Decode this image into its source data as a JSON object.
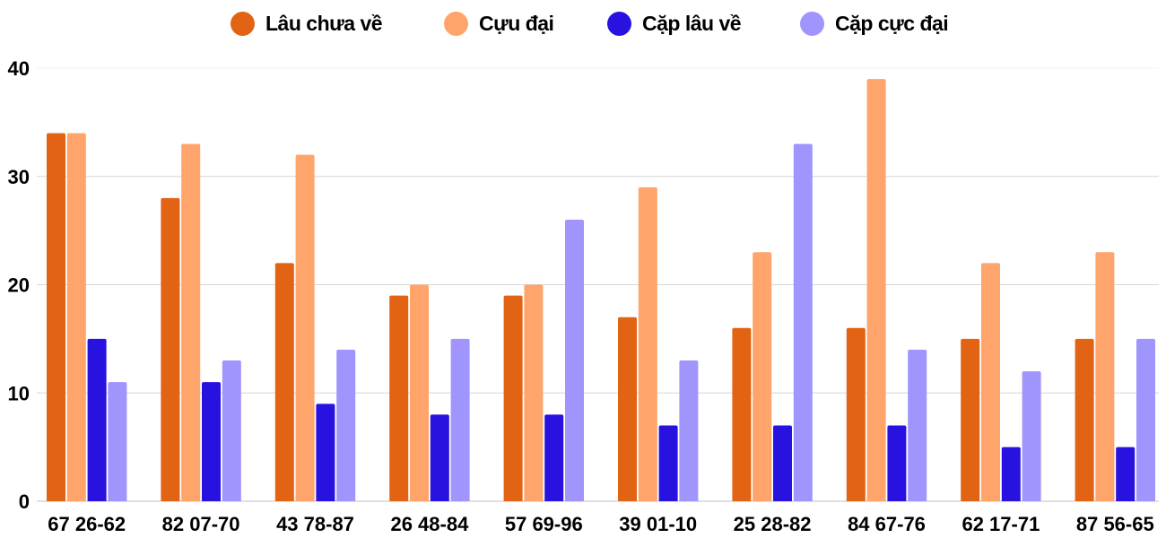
{
  "chart_data": {
    "type": "bar",
    "categories": [
      "67 26-62",
      "82 07-70",
      "43 78-87",
      "26 48-84",
      "57 69-96",
      "39 01-10",
      "25 28-82",
      "84 67-76",
      "62 17-71",
      "87 56-65"
    ],
    "series": [
      {
        "name": "Lâu chưa về",
        "color": "#e26314",
        "values": [
          34,
          28,
          22,
          19,
          19,
          17,
          16,
          16,
          15,
          15
        ]
      },
      {
        "name": "Cựu đại",
        "color": "#ffa46b",
        "values": [
          34,
          33,
          32,
          20,
          20,
          29,
          23,
          39,
          22,
          23
        ]
      },
      {
        "name": "Cặp lâu về",
        "color": "#2712e0",
        "values": [
          15,
          11,
          9,
          8,
          8,
          7,
          7,
          7,
          5,
          5
        ]
      },
      {
        "name": "Cặp cực đại",
        "color": "#a095fd",
        "values": [
          11,
          13,
          14,
          15,
          26,
          13,
          33,
          14,
          12,
          15
        ]
      }
    ],
    "yticks": [
      "0",
      "10",
      "20",
      "30",
      "40"
    ],
    "ylim": [
      0,
      40
    ],
    "grid": true,
    "legend_position": "top"
  }
}
